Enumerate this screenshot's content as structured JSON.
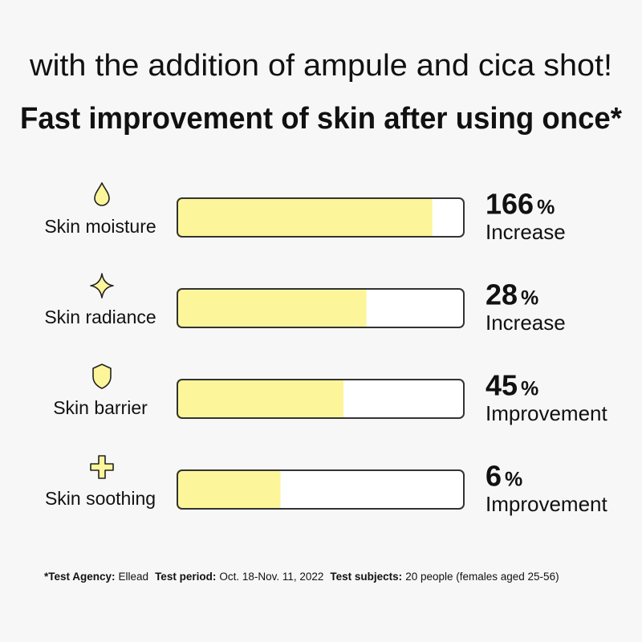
{
  "header": {
    "line1": "with the addition of ampule and cica shot!",
    "line2": "Fast improvement of skin after using once*"
  },
  "rows": [
    {
      "label": "Skin moisture",
      "value": "166",
      "unit": "%",
      "note": "Increase",
      "bar_fill": 89
    },
    {
      "label": "Skin radiance",
      "value": "28",
      "unit": "%",
      "note": "Increase",
      "bar_fill": 66
    },
    {
      "label": "Skin barrier",
      "value": "45",
      "unit": "%",
      "note": "Improvement",
      "bar_fill": 58
    },
    {
      "label": "Skin soothing",
      "value": "6",
      "unit": "%",
      "note": "Improvement",
      "bar_fill": 36
    }
  ],
  "footnote": [
    {
      "label": "*Test Agency:",
      "text": "Ellead"
    },
    {
      "label": "Test period:",
      "text": "Oct. 18-Nov. 11, 2022"
    },
    {
      "label": "Test subjects:",
      "text": "20 people (females aged 25-56)"
    }
  ]
}
